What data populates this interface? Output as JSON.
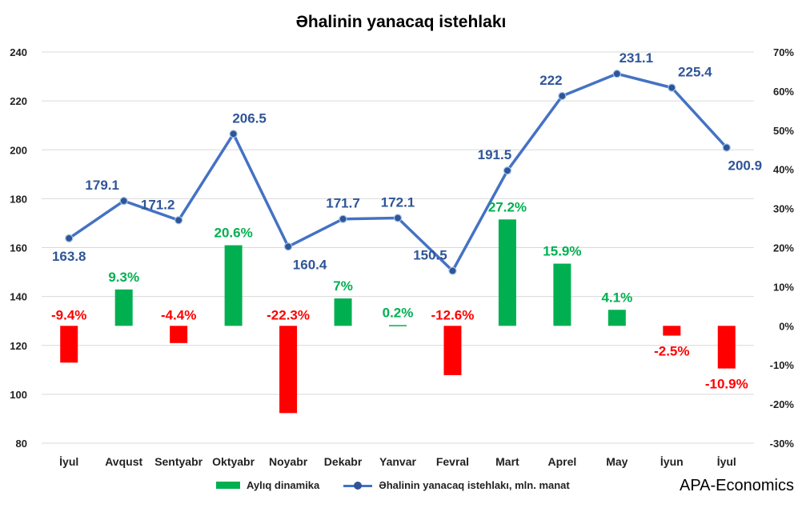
{
  "title": "Əhalinin yanacaq istehlakı",
  "legend": {
    "bar_label": "Aylıq dinamika",
    "line_label": "Əhalinin yanacaq istehlakı, mln. manat"
  },
  "source": "APA-Economics",
  "colors": {
    "positive_bar": "#00b050",
    "negative_bar": "#ff0000",
    "line": "#4472c4",
    "marker": "#2f5597",
    "line_label": "#2f5597",
    "positive_label": "#00b050",
    "negative_label": "#ff0000"
  },
  "chart_data": {
    "type": "bar+line",
    "categories": [
      "İyul",
      "Avqust",
      "Sentyabr",
      "Oktyabr",
      "Noyabr",
      "Dekabr",
      "Yanvar",
      "Fevral",
      "Mart",
      "Aprel",
      "May",
      "İyun",
      "İyul"
    ],
    "series": [
      {
        "name": "Aylıq dinamika",
        "type": "bar",
        "axis": "right",
        "values": [
          -9.4,
          9.3,
          -4.4,
          20.6,
          -22.3,
          7,
          0.2,
          -12.6,
          27.2,
          15.9,
          4.1,
          -2.5,
          -10.9
        ],
        "labels": [
          "-9.4%",
          "9.3%",
          "-4.4%",
          "20.6%",
          "-22.3%",
          "7%",
          "0.2%",
          "-12.6%",
          "27.2%",
          "15.9%",
          "4.1%",
          "-2.5%",
          "-10.9%"
        ]
      },
      {
        "name": "Əhalinin yanacaq istehlakı, mln. manat",
        "type": "line",
        "axis": "left",
        "values": [
          163.8,
          179.1,
          171.2,
          206.5,
          160.4,
          171.7,
          172.1,
          150.5,
          191.5,
          222,
          231.1,
          225.4,
          200.9
        ],
        "labels": [
          "163.8",
          "179.1",
          "171.2",
          "206.5",
          "160.4",
          "171.7",
          "172.1",
          "150.5",
          "191.5",
          "222",
          "231.1",
          "225.4",
          "200.9"
        ]
      }
    ],
    "y_left": {
      "min": 80,
      "max": 240,
      "step": 20,
      "ticks": [
        "80",
        "100",
        "120",
        "140",
        "160",
        "180",
        "200",
        "220",
        "240"
      ]
    },
    "y_right": {
      "min": -30,
      "max": 70,
      "step": 10,
      "ticks": [
        "-30%",
        "-20%",
        "-10%",
        "0%",
        "10%",
        "20%",
        "30%",
        "40%",
        "50%",
        "60%",
        "70%"
      ]
    },
    "grid": true,
    "legend_position": "bottom"
  }
}
